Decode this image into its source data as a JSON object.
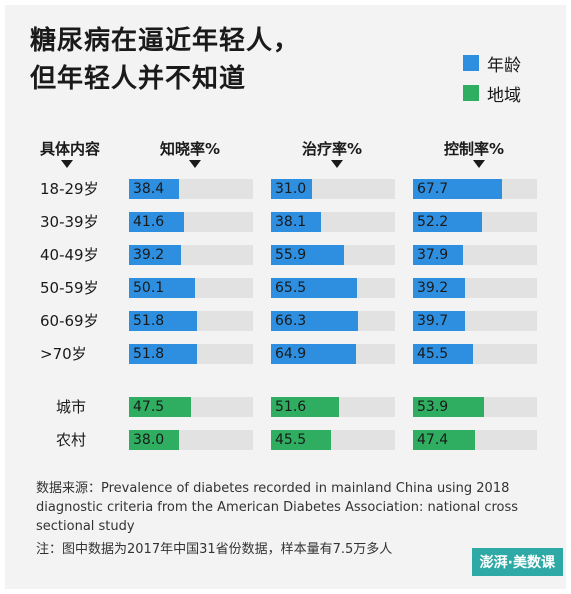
{
  "colors": {
    "age": "#2e8fe0",
    "region": "#2fae61"
  },
  "title": {
    "line1": "糖尿病在逼近年轻人，",
    "line2": "但年轻人并不知道"
  },
  "legend": [
    {
      "name": "年龄",
      "color": "#2e8fe0"
    },
    {
      "name": "地域",
      "color": "#2fae61"
    }
  ],
  "headers": {
    "group": "具体内容",
    "awareness": "知晓率%",
    "treatment": "治疗率%",
    "control": "控制率%"
  },
  "chart_data": {
    "type": "bar",
    "orientation": "horizontal",
    "xlim": [
      0,
      100
    ],
    "categories": [
      "18-29岁",
      "30-39岁",
      "40-49岁",
      "50-59岁",
      "60-69岁",
      ">70岁",
      "城市",
      "农村"
    ],
    "category_groups": [
      "年龄",
      "年龄",
      "年龄",
      "年龄",
      "年龄",
      "年龄",
      "地域",
      "地域"
    ],
    "series": [
      {
        "name": "知晓率%",
        "values": [
          38.4,
          41.6,
          39.2,
          50.1,
          51.8,
          51.8,
          47.5,
          38.0
        ]
      },
      {
        "name": "治疗率%",
        "values": [
          31.0,
          38.1,
          55.9,
          65.5,
          66.3,
          64.9,
          51.6,
          45.5
        ]
      },
      {
        "name": "控制率%",
        "values": [
          67.7,
          52.2,
          37.9,
          39.2,
          39.7,
          45.5,
          53.9,
          47.4
        ]
      }
    ]
  },
  "notes": {
    "source_line1": "数据来源：Prevalence of diabetes recorded in mainland China using 2018",
    "source_line2": "diagnostic criteria from the American Diabetes Association: national cross",
    "source_line3": "sectional study",
    "note": "注：图中数据为2017年中国31省份数据，样本量有7.5万多人"
  },
  "logo": "澎湃·美数课"
}
